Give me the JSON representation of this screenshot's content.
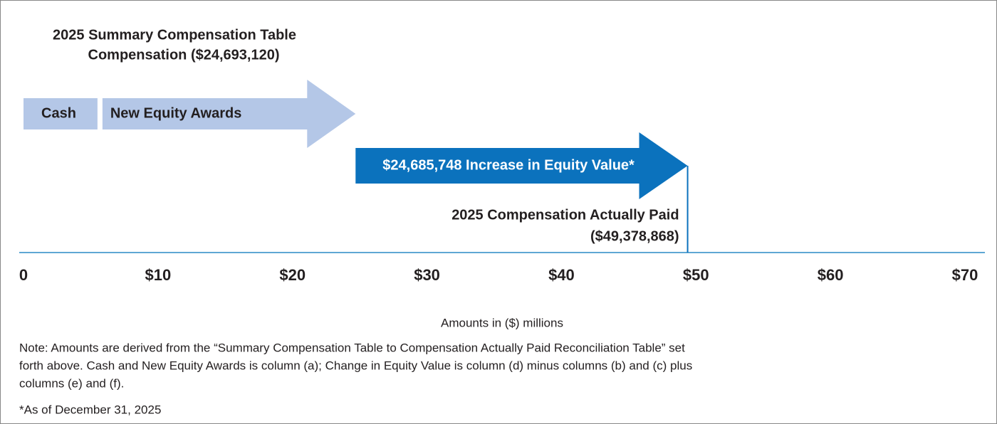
{
  "chart_data": {
    "type": "arrow-waterfall",
    "title": [
      "2025 Summary Compensation Table",
      "Compensation ($24,693,120)"
    ],
    "series": [
      {
        "name": "Cash",
        "color": "#b4c7e7",
        "values": [
          5.5
        ]
      },
      {
        "name": "New Equity Awards",
        "color": "#b4c7e7",
        "values": [
          19.19
        ]
      },
      {
        "name": "$24,685,748 Increase in Equity Value*",
        "color": "#0b72bd",
        "values": [
          24.685748
        ]
      }
    ],
    "marker": 49.378868,
    "marker_label": [
      "2025 Compensation Actually Paid",
      "($49,378,868)"
    ],
    "xlim": [
      0,
      70
    ],
    "xticks": [
      0,
      {
        "value": 10,
        "label": "$10"
      },
      {
        "value": 20,
        "label": "$20"
      },
      {
        "value": 30,
        "label": "$30"
      },
      {
        "value": 40,
        "label": "$40"
      },
      {
        "value": 50,
        "label": "$50"
      },
      {
        "value": 60,
        "label": "$60"
      },
      {
        "value": 70,
        "label": "$70"
      }
    ],
    "xlabel": "Amounts in ($) millions",
    "notes": [
      "Note: Amounts are derived from the “Summary Compensation Table to Compensation Actually Paid Reconciliation Table” set",
      "forth above. Cash and New Equity Awards is column (a); Change in Equity Value is column (d) minus columns (b) and (c) plus",
      "columns (e) and (f)."
    ],
    "footnote": "*As of December 31, 2025"
  }
}
